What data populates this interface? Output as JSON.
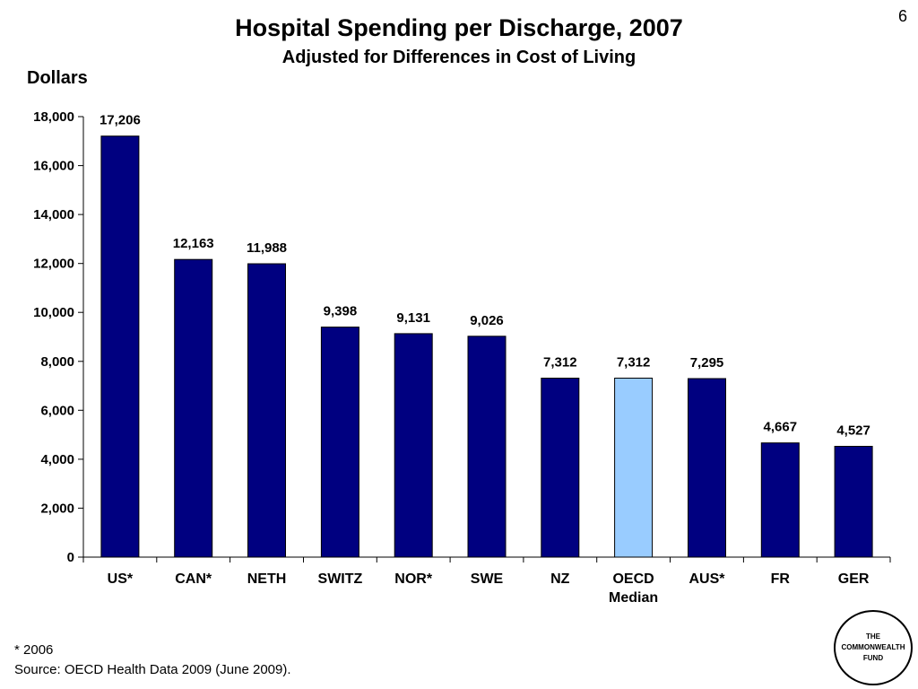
{
  "page_number": "6",
  "chart_data": {
    "type": "bar",
    "title": "Hospital Spending per Discharge, 2007",
    "subtitle": "Adjusted for Differences in Cost of Living",
    "ylabel": "Dollars",
    "xlabel": "",
    "ylim": [
      0,
      18000
    ],
    "yticks": [
      0,
      2000,
      4000,
      6000,
      8000,
      10000,
      12000,
      14000,
      16000,
      18000
    ],
    "ytick_labels": [
      "0",
      "2,000",
      "4,000",
      "6,000",
      "8,000",
      "10,000",
      "12,000",
      "14,000",
      "16,000",
      "18,000"
    ],
    "grid": false,
    "legend": "none",
    "categories": [
      [
        "US*"
      ],
      [
        "CAN*"
      ],
      [
        "NETH"
      ],
      [
        "SWITZ"
      ],
      [
        "NOR*"
      ],
      [
        "SWE"
      ],
      [
        "NZ"
      ],
      [
        "OECD",
        "Median"
      ],
      [
        "AUS*"
      ],
      [
        "FR"
      ],
      [
        "GER"
      ]
    ],
    "values": [
      17206,
      12163,
      11988,
      9398,
      9131,
      9026,
      7312,
      7312,
      7295,
      4667,
      4527
    ],
    "data_labels": [
      "17,206",
      "12,163",
      "11,988",
      "9,398",
      "9,131",
      "9,026",
      "7,312",
      "7,312",
      "7,295",
      "4,667",
      "4,527"
    ],
    "colors": {
      "bar": "#000080",
      "highlight_bar": "#99CCFF",
      "axis": "#000000"
    },
    "highlight_index": 7
  },
  "footnotes": {
    "asterisk": "* 2006",
    "source": "Source: OECD Health Data 2009 (June 2009)."
  },
  "logo": {
    "lines": [
      "THE",
      "COMMONWEALTH",
      "FUND"
    ]
  }
}
